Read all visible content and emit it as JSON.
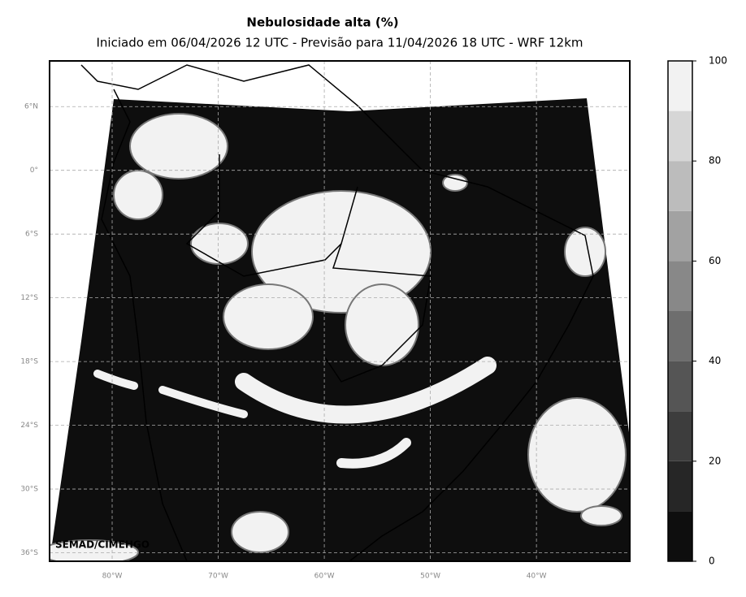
{
  "title": "Nebulosidade alta (%)",
  "subtitle": "Iniciado em 06/04/2026 12 UTC - Previsão para 11/04/2026 18 UTC - WRF 12km",
  "map": {
    "latlim": [
      -36.8,
      10.3
    ],
    "lonlim": [
      -85.9,
      -31.2
    ],
    "latticks": [
      {
        "value": 6,
        "label": "6°N"
      },
      {
        "value": 0,
        "label": "0°"
      },
      {
        "value": -6,
        "label": "6°S"
      },
      {
        "value": -12,
        "label": "12°S"
      },
      {
        "value": -18,
        "label": "18°S"
      },
      {
        "value": -24,
        "label": "24°S"
      },
      {
        "value": -30,
        "label": "30°S"
      },
      {
        "value": -36,
        "label": "36°S"
      }
    ],
    "lonticks": [
      {
        "value": -80,
        "label": "80°W"
      },
      {
        "value": -70,
        "label": "70°W"
      },
      {
        "value": -60,
        "label": "60°W"
      },
      {
        "value": -50,
        "label": "50°W"
      },
      {
        "value": -40,
        "label": "40°W"
      }
    ],
    "grid": true,
    "watermark": "SEMAD/CIMEHGO"
  },
  "colorbar": {
    "lim": [
      0,
      100
    ],
    "levels": [
      0,
      10,
      20,
      30,
      40,
      50,
      60,
      70,
      80,
      90,
      100
    ],
    "colors": [
      "#0e0e0e",
      "#262626",
      "#3d3d3d",
      "#555555",
      "#6e6e6e",
      "#888888",
      "#a2a2a2",
      "#bcbcbc",
      "#d6d6d6",
      "#f2f2f2"
    ],
    "ticks": [
      0,
      20,
      40,
      60,
      80,
      100
    ]
  }
}
